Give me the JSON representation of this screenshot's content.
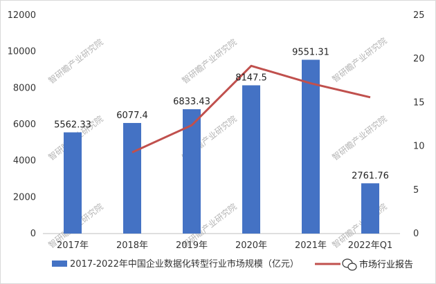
{
  "chart_data": {
    "type": "bar",
    "categories": [
      "2017年",
      "2018年",
      "2019年",
      "2020年",
      "2021年",
      "2022年Q1"
    ],
    "series": [
      {
        "name": "2017-2022年中国企业数据化转型行业市场规模（亿元）",
        "type": "bar",
        "axis": "left",
        "color": "#4472C4",
        "values": [
          5562.33,
          6077.4,
          6833.43,
          8147.5,
          9551.31,
          2761.76
        ],
        "labels": [
          "5562.33",
          "6077.4",
          "6833.43",
          "8147.5",
          "9551.31",
          "2761.76"
        ]
      },
      {
        "name": "",
        "type": "line",
        "axis": "right",
        "color": "#C0504D",
        "values": [
          null,
          9.3,
          12.4,
          19.2,
          17.2,
          15.6
        ]
      }
    ],
    "yleft": {
      "ylim": [
        0,
        12000
      ],
      "ticks": [
        "0",
        "2000",
        "4000",
        "6000",
        "8000",
        "10000",
        "12000"
      ]
    },
    "yright": {
      "ylim": [
        0,
        25
      ],
      "ticks": [
        "0",
        "5",
        "10",
        "15",
        "20",
        "25"
      ]
    },
    "grid": false,
    "legend": "bottom",
    "xlabel": "",
    "ylabel": "",
    "title": ""
  },
  "watermark": "智研瞻产业研究院",
  "brand": {
    "icon": "wechat-icon",
    "text": "市场行业报告"
  }
}
